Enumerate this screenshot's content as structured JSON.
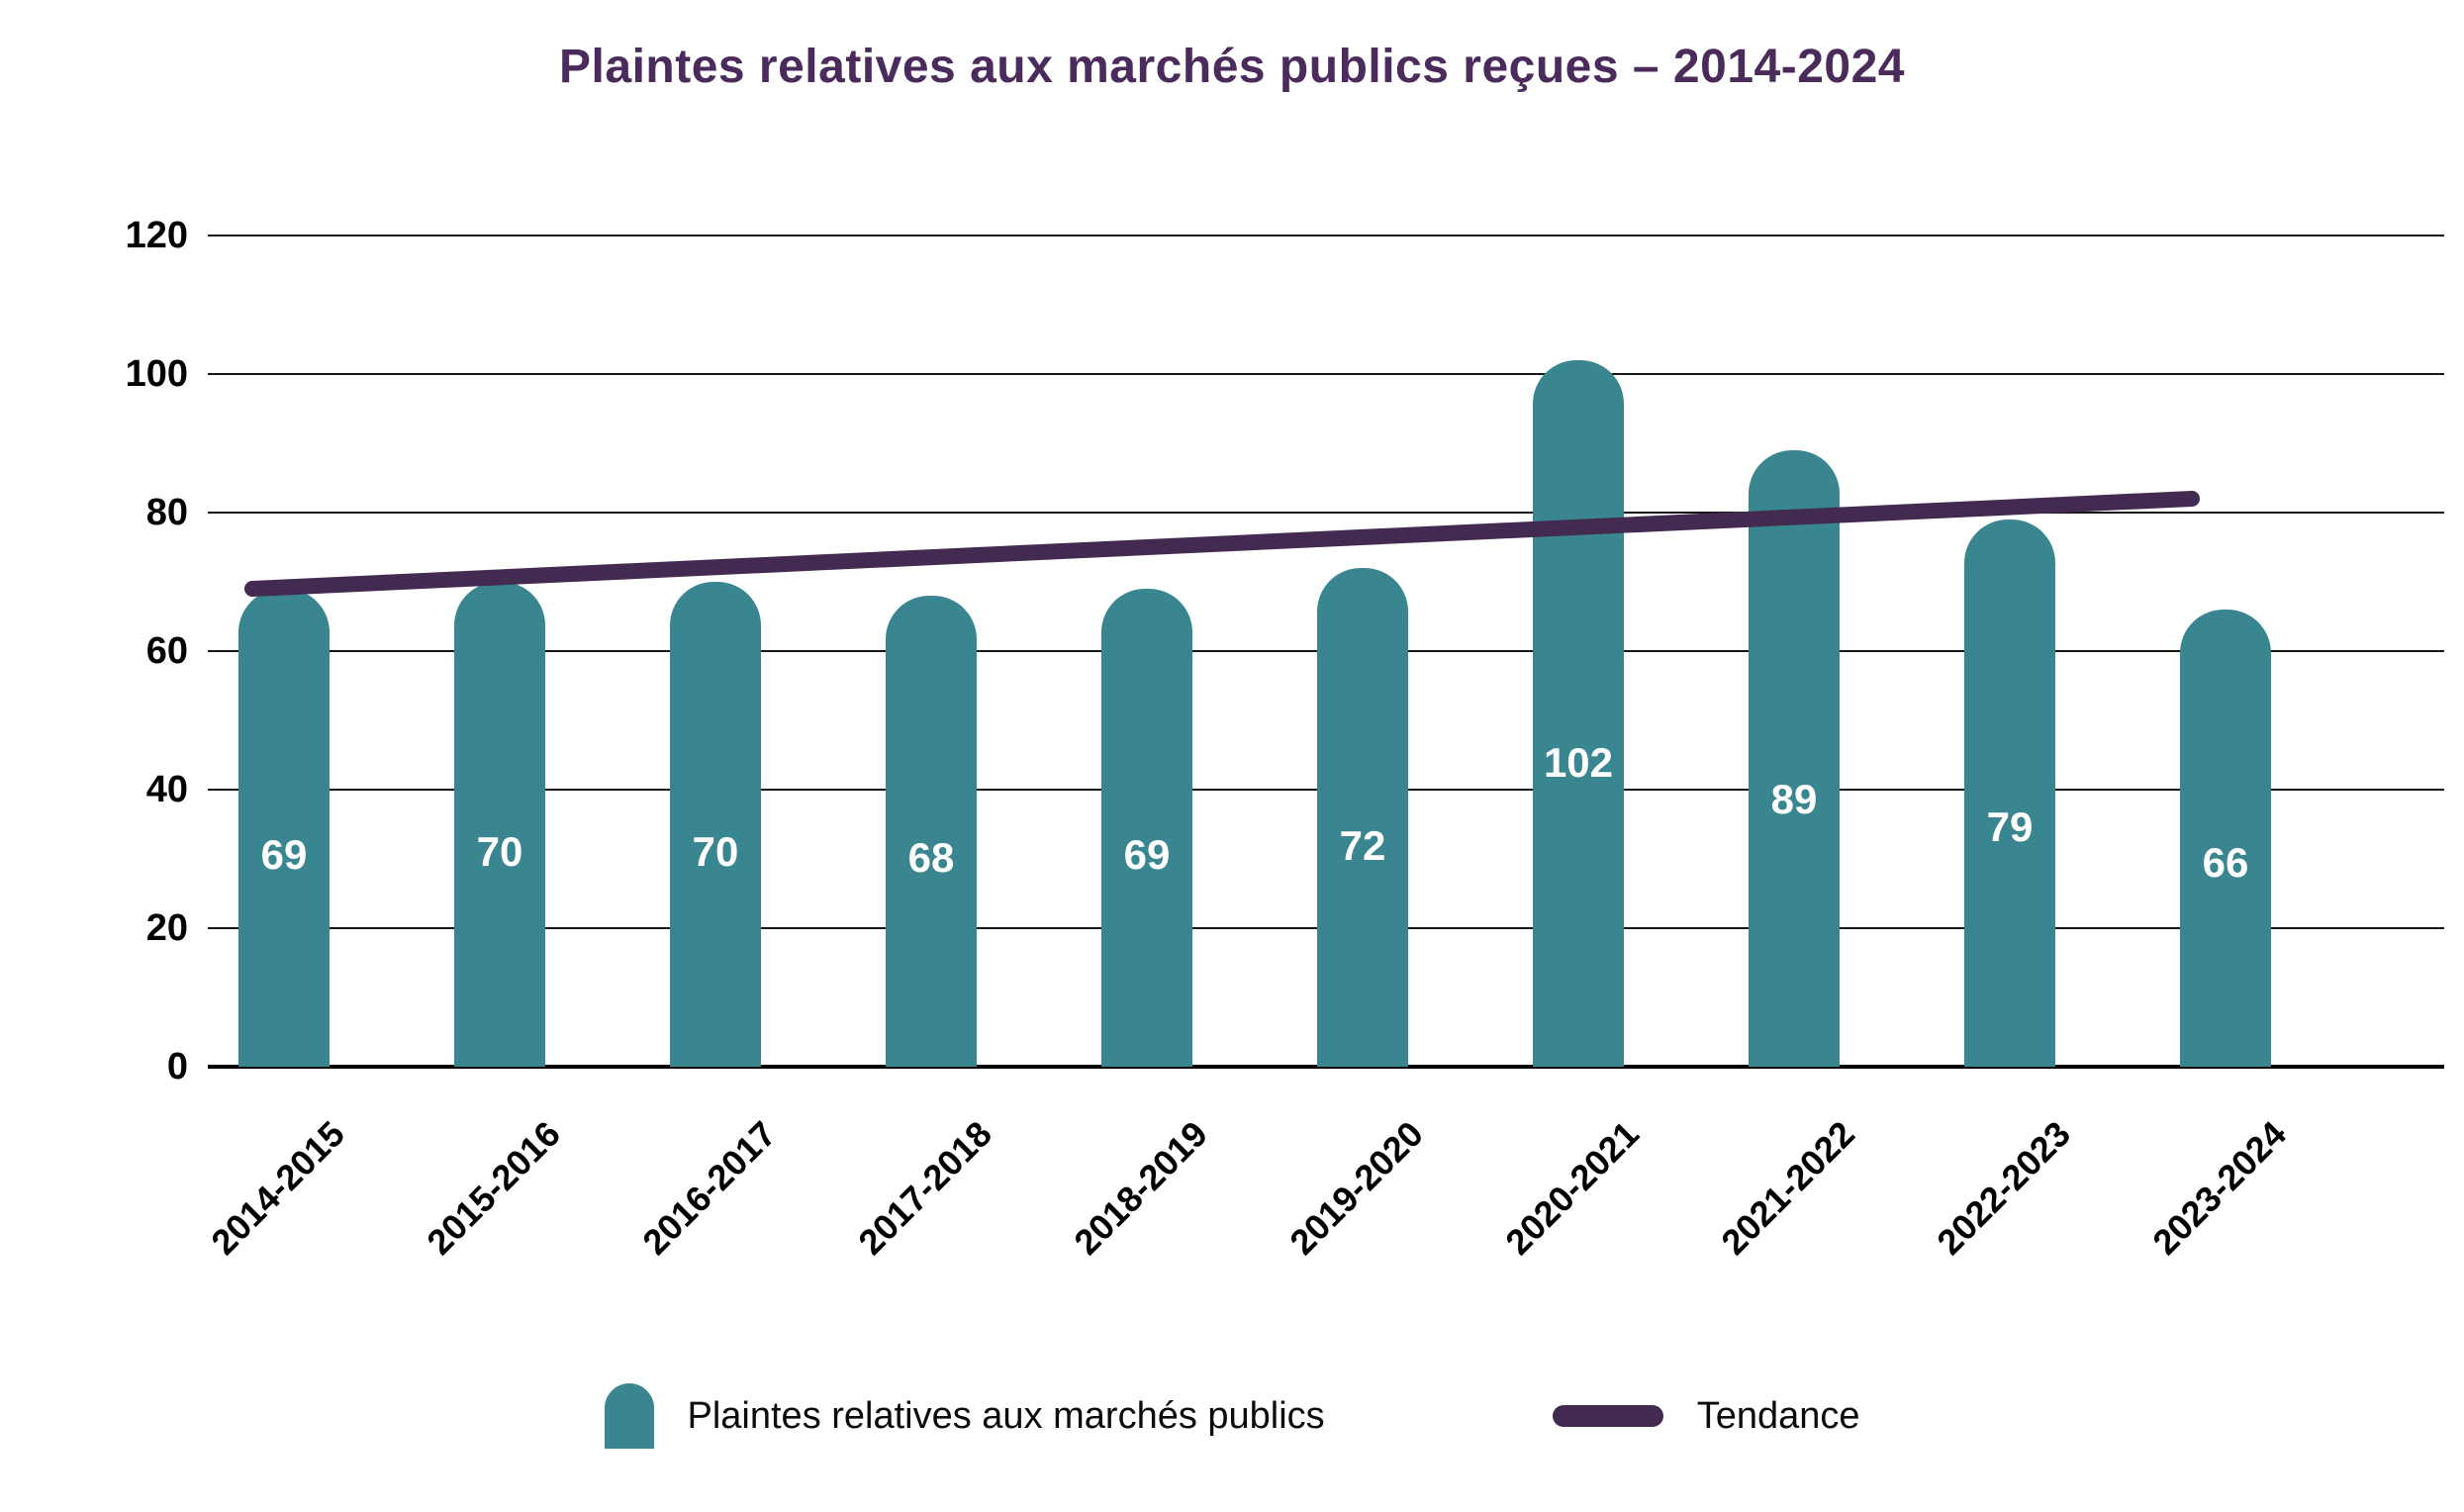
{
  "title": "Plaintes relatives aux marchés publics reçues – 2014-2024",
  "colors": {
    "bar": "#398690",
    "trend": "#422A50",
    "title_text": "#4A2B5C",
    "grid": "#161616",
    "axis": "#000000",
    "value_label": "#FFFFFF",
    "tick_label": "#000000"
  },
  "y_axis": {
    "ticks": [
      120,
      100,
      80,
      60,
      40,
      20,
      0
    ],
    "min": 0,
    "max": 120
  },
  "chart_data": {
    "type": "bar",
    "title": "Plaintes relatives aux marchés publics reçues – 2014-2024",
    "categories": [
      "2014-2015",
      "2015-2016",
      "2016-2017",
      "2017-2018",
      "2018-2019",
      "2019-2020",
      "2020-2021",
      "2021-2022",
      "2022-2023",
      "2023-2024"
    ],
    "values": [
      69,
      70,
      70,
      68,
      69,
      72,
      102,
      89,
      79,
      66
    ],
    "series_name": "Plaintes relatives aux marchés publics",
    "trend": {
      "name": "Tendance",
      "start_value": 69,
      "end_value": 82
    },
    "xlabel": "",
    "ylabel": "",
    "ylim": [
      0,
      120
    ],
    "grid": true,
    "legend_position": "bottom"
  },
  "legend": {
    "bars_label": "Plaintes relatives aux marchés publics",
    "trend_label": "Tendance"
  }
}
